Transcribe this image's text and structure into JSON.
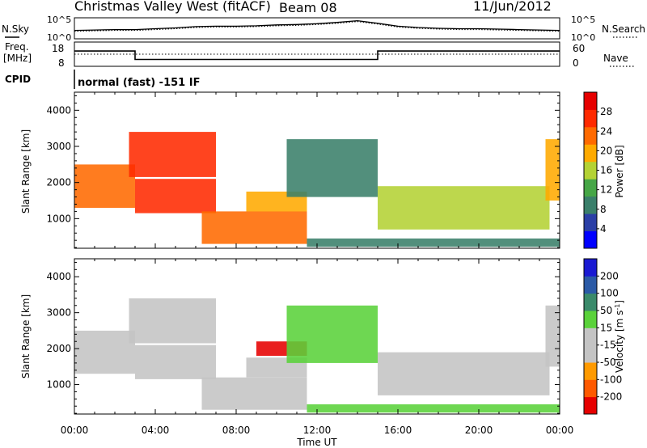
{
  "header": {
    "station": "Christmas Valley West (fitACF)",
    "beam": "Beam 08",
    "date": "11/Jun/2012"
  },
  "chart_data": [
    {
      "id": "noise",
      "type": "line",
      "ylabel_left": "N.Sky",
      "ylabel_right": "N.Search",
      "y_ticks_left": [
        "10^5",
        "10^0"
      ],
      "y_ticks_right": [
        "10^5",
        "10^0"
      ],
      "x": [
        0,
        1,
        2,
        3,
        4,
        5,
        6,
        7,
        8,
        9,
        10,
        11,
        12,
        13,
        14,
        15,
        16,
        17,
        18,
        19,
        20,
        21,
        22,
        23,
        24
      ],
      "series": [
        {
          "style": "solid",
          "values": [
            2.0,
            2.1,
            2.2,
            2.2,
            2.4,
            2.6,
            2.9,
            3.0,
            3.0,
            3.1,
            3.3,
            3.4,
            3.6,
            3.9,
            4.3,
            3.7,
            3.0,
            2.7,
            2.5,
            2.4,
            2.4,
            2.3,
            2.2,
            2.1,
            2.0
          ]
        },
        {
          "style": "dotted",
          "values": [
            1.8,
            1.9,
            2.0,
            2.0,
            2.2,
            2.4,
            2.7,
            2.8,
            2.8,
            2.9,
            3.1,
            3.2,
            3.4,
            3.7,
            4.1,
            3.5,
            2.8,
            2.5,
            2.3,
            2.2,
            2.2,
            2.1,
            2.0,
            1.9,
            1.8
          ]
        }
      ]
    },
    {
      "id": "frequency",
      "type": "line",
      "ylabel_left": "Freq.",
      "ylabel_left_unit": "[MHz]",
      "ylabel_right": "Nave",
      "y_ticks_left": [
        18,
        8
      ],
      "y_ticks_right": [
        60,
        0
      ],
      "ylim_left": [
        8,
        18
      ],
      "ylim_right": [
        0,
        60
      ],
      "series": [
        {
          "name": "frequency",
          "style": "solid",
          "x": [
            0,
            3,
            3,
            15,
            15,
            24
          ],
          "values": [
            14.5,
            14.5,
            10.5,
            10.5,
            14.5,
            14.5
          ]
        },
        {
          "name": "nave",
          "style": "dotted",
          "x": [
            0,
            24
          ],
          "values": [
            30,
            30
          ]
        }
      ]
    },
    {
      "id": "cpid",
      "label": "CPID",
      "text": "normal (fast) -151 IF"
    },
    {
      "id": "power",
      "type": "heatmap",
      "ylabel": "Slant Range [km]",
      "ylim": [
        180,
        4500
      ],
      "y_ticks": [
        1000,
        2000,
        3000,
        4000
      ],
      "xlim": [
        0,
        24
      ],
      "colorbar": {
        "label": "Power [dB]",
        "ticks": [
          28,
          24,
          20,
          16,
          12,
          8,
          4
        ],
        "range": [
          0,
          32
        ]
      },
      "echo_regions": [
        {
          "t": [
            0,
            3
          ],
          "r": [
            1300,
            2500
          ],
          "value": 24
        },
        {
          "t": [
            2.7,
            7
          ],
          "r": [
            2150,
            3400
          ],
          "value": 26
        },
        {
          "t": [
            3,
            7
          ],
          "r": [
            1150,
            2100
          ],
          "value": 26
        },
        {
          "t": [
            6.3,
            11.5
          ],
          "r": [
            300,
            1200
          ],
          "value": 24
        },
        {
          "t": [
            8.5,
            11.5
          ],
          "r": [
            1200,
            1750
          ],
          "value": 18
        },
        {
          "t": [
            10.5,
            15
          ],
          "r": [
            1600,
            3200
          ],
          "value": 10
        },
        {
          "t": [
            15,
            23.5
          ],
          "r": [
            700,
            1900
          ],
          "value": 16
        },
        {
          "t": [
            23.3,
            24
          ],
          "r": [
            1500,
            3200
          ],
          "value": 18
        },
        {
          "t": [
            11.5,
            24
          ],
          "r": [
            220,
            450
          ],
          "value": 8
        }
      ]
    },
    {
      "id": "velocity",
      "type": "heatmap",
      "ylabel": "Slant Range [km]",
      "ylim": [
        180,
        4500
      ],
      "y_ticks": [
        1000,
        2000,
        3000,
        4000
      ],
      "xlim": [
        0,
        24
      ],
      "colorbar": {
        "label": "Velocity [m s^-1]",
        "ticks": [
          200,
          100,
          50,
          15,
          -15,
          -50,
          -100,
          -200
        ],
        "range": [
          -250,
          250
        ]
      },
      "echo_regions": [
        {
          "t": [
            0,
            3
          ],
          "r": [
            1300,
            2500
          ],
          "value": 0
        },
        {
          "t": [
            2.7,
            7
          ],
          "r": [
            2150,
            3400
          ],
          "value": -70
        },
        {
          "t": [
            3,
            7
          ],
          "r": [
            1150,
            2100
          ],
          "value": 0
        },
        {
          "t": [
            6.3,
            11.5
          ],
          "r": [
            300,
            1200
          ],
          "value": -60
        },
        {
          "t": [
            8.5,
            11.5
          ],
          "r": [
            1200,
            1750
          ],
          "value": 0
        },
        {
          "t": [
            9,
            11.5
          ],
          "r": [
            1800,
            2200
          ],
          "value": -220
        },
        {
          "t": [
            10.5,
            15
          ],
          "r": [
            1600,
            3200
          ],
          "value": 30
        },
        {
          "t": [
            15,
            23.5
          ],
          "r": [
            700,
            1900
          ],
          "value": 0
        },
        {
          "t": [
            23.3,
            24
          ],
          "r": [
            1500,
            3200
          ],
          "value": -60
        },
        {
          "t": [
            11.5,
            24
          ],
          "r": [
            220,
            450
          ],
          "value": 60
        }
      ]
    }
  ],
  "x_axis": {
    "label": "Time UT",
    "range": [
      0,
      24
    ],
    "ticks": [
      {
        "value": 0,
        "label": "00:00"
      },
      {
        "value": 4,
        "label": "04:00"
      },
      {
        "value": 8,
        "label": "08:00"
      },
      {
        "value": 12,
        "label": "12:00"
      },
      {
        "value": 16,
        "label": "16:00"
      },
      {
        "value": 20,
        "label": "20:00"
      },
      {
        "value": 24,
        "label": "00:00"
      }
    ]
  },
  "colors": {
    "power_scale": [
      "#0000ff",
      "#2b3fa6",
      "#3a7f6a",
      "#46a646",
      "#b4d234",
      "#ffaa00",
      "#ff6a00",
      "#ff2a00",
      "#e60000"
    ],
    "velocity_scale": [
      "#e60000",
      "#ff5a00",
      "#ff9a00",
      "#c4c4c4",
      "#c4c4c4",
      "#5ad23a",
      "#3a8a6a",
      "#2b5aa6",
      "#1a1ad2"
    ]
  }
}
